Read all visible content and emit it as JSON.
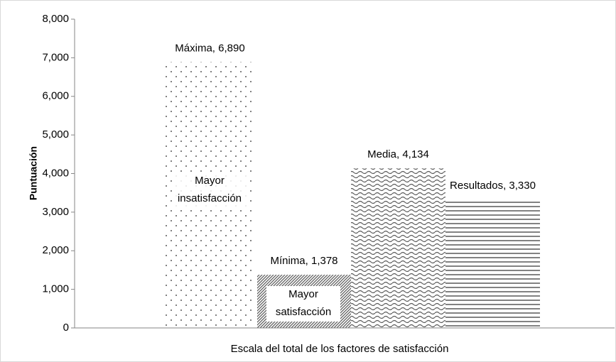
{
  "chart_data": {
    "type": "bar",
    "x_label": "Escala del total de los factores de satisfacción",
    "y_label": "Puntuación",
    "categories": [
      null,
      null,
      null,
      null
    ],
    "values": [
      6890,
      1378,
      4134,
      3330
    ],
    "value_labels": [
      "Máxima, 6,890",
      "Mínima, 1,378",
      "Media, 4,134",
      "Resultados, 3,330"
    ],
    "patterns": [
      "dots",
      "diagonal",
      "wave",
      "horizontal"
    ],
    "color": "#595959",
    "annotations": [
      [
        "Mayor",
        "insatisfacción"
      ],
      [
        "Mayor",
        "satisfacción"
      ]
    ],
    "ylim": [
      0,
      8000
    ],
    "yticks": [
      0,
      {
        "value": 1000,
        "label": "1,000"
      },
      {
        "value": 2000,
        "label": "2,000"
      },
      {
        "value": 3000,
        "label": "3,000"
      },
      {
        "value": 4000,
        "label": "4,000"
      },
      {
        "value": 5000,
        "label": "5,000"
      },
      {
        "value": 6000,
        "label": "6,000"
      },
      {
        "value": 7000,
        "label": "7,000"
      },
      {
        "value": 8000,
        "label": "8,000"
      }
    ],
    "grid": false
  }
}
